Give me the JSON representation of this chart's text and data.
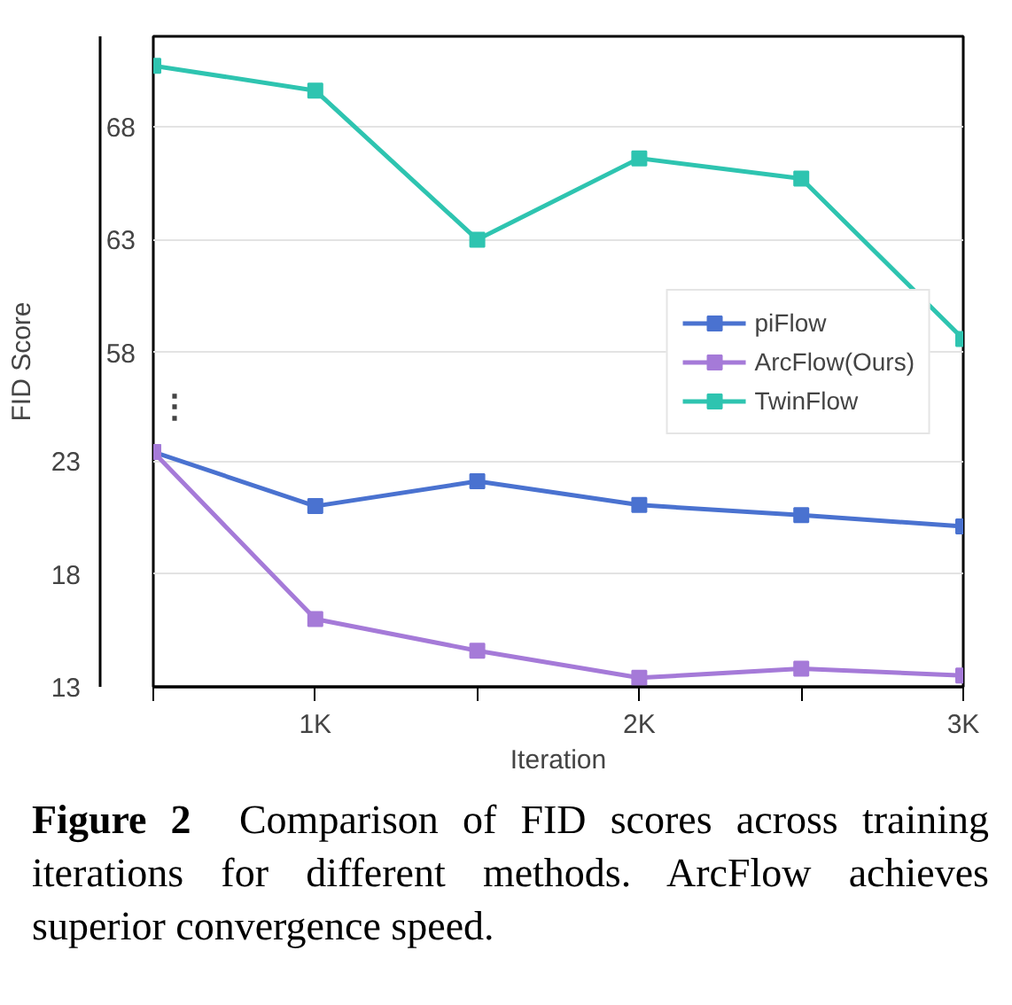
{
  "chart_data": {
    "type": "line",
    "xlabel": "Iteration",
    "ylabel": "FID Score",
    "x": [
      500,
      1000,
      1500,
      2000,
      2500,
      3000
    ],
    "xlim": [
      500,
      3000
    ],
    "xticks": [
      {
        "value": 500,
        "label": null
      },
      {
        "value": 1000,
        "label": "1K"
      },
      {
        "value": 1500,
        "label": null
      },
      {
        "value": 2000,
        "label": "2K"
      },
      {
        "value": 2500,
        "label": null
      },
      {
        "value": 3000,
        "label": "3K"
      }
    ],
    "ylim": [
      13,
      41.8
    ],
    "yticks": [
      13,
      18,
      23
    ],
    "y2lim": [
      43.2,
      72
    ],
    "y2ticks": [
      58,
      63,
      68
    ],
    "series": [
      {
        "name": "piFlow",
        "color": "#4a72d0",
        "values": [
          23.4,
          21.0,
          22.1,
          21.05,
          20.6,
          20.1
        ]
      },
      {
        "name": "ArcFlow(Ours)",
        "color": "#a57ad8",
        "values": [
          23.4,
          16.0,
          14.6,
          13.4,
          13.8,
          13.5
        ]
      },
      {
        "name": "TwinFlow",
        "color": "#2ec4b0",
        "axis": "y2",
        "values": [
          70.7,
          69.6,
          63.0,
          66.6,
          65.7,
          58.6
        ]
      }
    ],
    "marker": "square",
    "line_style": "solid",
    "grid": "y",
    "legend": "right",
    "annotations": [
      "⋮",
      "Figure 2",
      "Comparison of FID scores across training iterations for different methods. ArcFlow achieves superior convergence speed."
    ]
  }
}
